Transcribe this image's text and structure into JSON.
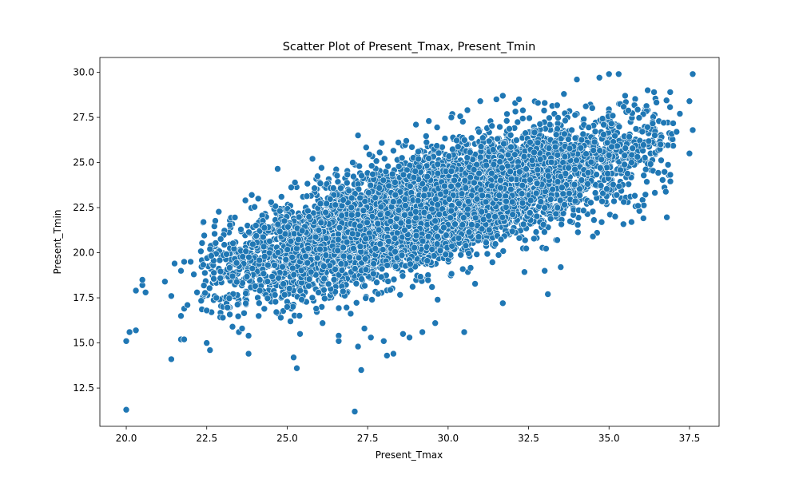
{
  "chart_data": {
    "type": "scatter",
    "title": "Scatter Plot of Present_Tmax, Present_Tmin",
    "xlabel": "Present_Tmax",
    "ylabel": "Present_Tmin",
    "xlim": [
      19.18,
      38.42
    ],
    "ylim": [
      10.38,
      30.82
    ],
    "xticks": [
      20.0,
      22.5,
      25.0,
      27.5,
      30.0,
      32.5,
      35.0,
      37.5
    ],
    "yticks": [
      12.5,
      15.0,
      17.5,
      20.0,
      22.5,
      25.0,
      27.5,
      30.0
    ],
    "xtick_labels": [
      "20.0",
      "22.5",
      "25.0",
      "27.5",
      "30.0",
      "32.5",
      "35.0",
      "37.5"
    ],
    "ytick_labels": [
      "12.5",
      "15.0",
      "17.5",
      "20.0",
      "22.5",
      "25.0",
      "27.5",
      "30.0"
    ],
    "grid": false,
    "point_color": "#1f77b4",
    "points": [
      [
        20.0,
        11.3
      ],
      [
        27.1,
        11.2
      ],
      [
        20.0,
        15.1
      ],
      [
        20.1,
        15.6
      ],
      [
        20.3,
        15.7
      ],
      [
        20.5,
        18.2
      ],
      [
        20.6,
        17.8
      ],
      [
        20.3,
        17.9
      ],
      [
        20.5,
        18.5
      ],
      [
        21.2,
        18.4
      ],
      [
        21.4,
        17.6
      ],
      [
        21.5,
        19.4
      ],
      [
        21.7,
        19.0
      ],
      [
        21.8,
        19.5
      ],
      [
        21.7,
        16.5
      ],
      [
        21.8,
        16.9
      ],
      [
        21.9,
        17.1
      ],
      [
        21.7,
        15.2
      ],
      [
        21.8,
        15.2
      ],
      [
        21.4,
        14.1
      ],
      [
        22.0,
        19.5
      ],
      [
        22.1,
        18.8
      ],
      [
        22.2,
        17.8
      ],
      [
        22.4,
        21.7
      ],
      [
        22.6,
        20.2
      ],
      [
        22.5,
        15.0
      ],
      [
        22.6,
        14.6
      ],
      [
        22.5,
        16.8
      ],
      [
        22.8,
        17.5
      ],
      [
        23.0,
        16.4
      ],
      [
        23.3,
        15.9
      ],
      [
        23.5,
        15.6
      ],
      [
        23.3,
        18.7
      ],
      [
        23.6,
        15.8
      ],
      [
        23.8,
        14.4
      ],
      [
        23.8,
        15.4
      ],
      [
        23.7,
        22.9
      ],
      [
        23.9,
        23.2
      ],
      [
        24.1,
        23.0
      ],
      [
        24.5,
        22.8
      ],
      [
        24.8,
        16.4
      ],
      [
        25.0,
        17.0
      ],
      [
        25.1,
        16.2
      ],
      [
        25.2,
        14.2
      ],
      [
        25.3,
        13.6
      ],
      [
        25.4,
        15.5
      ],
      [
        25.9,
        16.9
      ],
      [
        26.1,
        16.1
      ],
      [
        26.6,
        15.4
      ],
      [
        26.6,
        15.1
      ],
      [
        27.2,
        14.8
      ],
      [
        27.3,
        13.5
      ],
      [
        27.4,
        15.8
      ],
      [
        27.6,
        15.3
      ],
      [
        28.0,
        15.1
      ],
      [
        28.1,
        14.3
      ],
      [
        28.3,
        14.4
      ],
      [
        28.6,
        15.5
      ],
      [
        28.8,
        15.3
      ],
      [
        29.2,
        15.6
      ],
      [
        29.6,
        16.1
      ],
      [
        30.5,
        15.6
      ],
      [
        31.7,
        17.2
      ],
      [
        33.1,
        17.7
      ],
      [
        33.0,
        19.0
      ],
      [
        33.5,
        19.2
      ],
      [
        34.5,
        20.9
      ],
      [
        35.7,
        21.7
      ],
      [
        35.9,
        22.6
      ],
      [
        33.4,
        22.5
      ],
      [
        27.2,
        26.5
      ],
      [
        28.7,
        26.2
      ],
      [
        29.0,
        27.1
      ],
      [
        29.4,
        27.3
      ],
      [
        30.1,
        27.5
      ],
      [
        30.6,
        27.9
      ],
      [
        31.0,
        28.4
      ],
      [
        31.5,
        28.5
      ],
      [
        31.7,
        28.7
      ],
      [
        32.2,
        28.5
      ],
      [
        33.0,
        28.3
      ],
      [
        33.6,
        28.8
      ],
      [
        34.0,
        29.6
      ],
      [
        34.7,
        29.7
      ],
      [
        35.0,
        29.9
      ],
      [
        35.3,
        29.9
      ],
      [
        35.5,
        28.7
      ],
      [
        36.2,
        29.0
      ],
      [
        36.4,
        28.9
      ],
      [
        36.9,
        28.9
      ],
      [
        37.2,
        27.7
      ],
      [
        37.5,
        28.4
      ],
      [
        37.6,
        29.9
      ],
      [
        37.6,
        26.8
      ],
      [
        37.5,
        25.5
      ],
      [
        37.1,
        26.7
      ],
      [
        36.6,
        26.0
      ],
      [
        36.7,
        27.2
      ],
      [
        35.0,
        25.4
      ],
      [
        35.7,
        25.0
      ]
    ],
    "cloud": {
      "count": 6400,
      "x_mean": 29.5,
      "x_sd": 3.3,
      "x_min": 22.3,
      "x_max": 37.0,
      "slope": 0.53,
      "intercept": 6.8,
      "resid_sd": 1.45,
      "y_min": 16.4,
      "y_max": 28.6,
      "seed": 7
    }
  }
}
